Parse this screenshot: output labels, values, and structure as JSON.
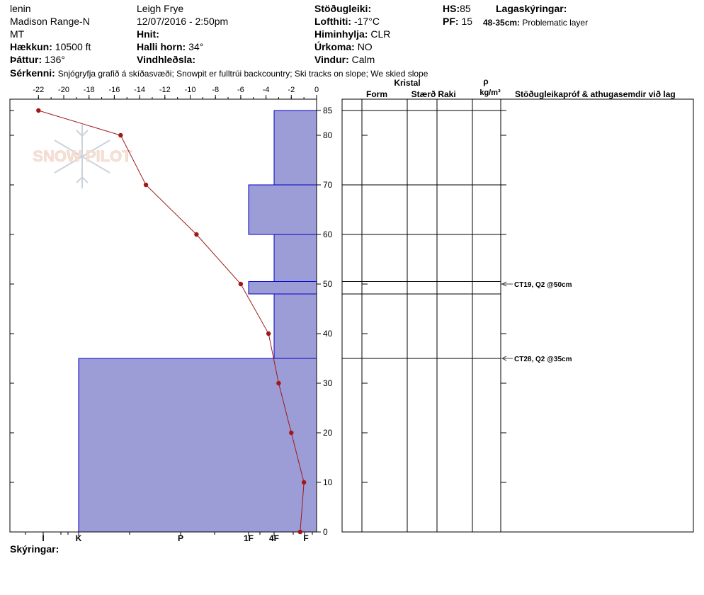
{
  "header": {
    "location_name": "lenin",
    "range": "Madison Range-N",
    "state": "MT",
    "observer": "Leigh Frye",
    "datetime": "12/07/2016 - 2:50pm",
    "elevation_label": "Hækkun:",
    "elevation_value": "10500 ft",
    "aspect_label": "Þáttur:",
    "aspect_value": "136°",
    "coords_label": "Hnit:",
    "slope_label": "Halli horn:",
    "slope_value": "34°",
    "wind_loading_label": "Vindhleðsla:",
    "stability_label": "Stöðugleiki:",
    "air_temp_label": "Lofthiti:",
    "air_temp_value": "-17°C",
    "sky_label": "Himinhylja:",
    "sky_value": "CLR",
    "precip_label": "Úrkoma:",
    "precip_value": "NO",
    "wind_label": "Vindur:",
    "wind_value": "Calm",
    "hs_label": "HS:",
    "hs_value": "85",
    "pf_label": "PF:",
    "pf_value": "15",
    "layers_label": "Lagaskýringar:",
    "layer_note_range": "48-35cm:",
    "layer_note_text": "Problematic layer",
    "features_label": "Sérkenni:",
    "features_text": "Snjógryfja grafið á skíðasvæði; Snowpit er fulltrúi backcountry; Ski tracks on slope; We skied slope",
    "notes_label": "Skýringar:"
  },
  "logo_text": "SNOW PILOT",
  "table": {
    "crystal_header": "Kristal",
    "form_header": "Form",
    "size_header": "Stærð",
    "moisture_header": "Raki",
    "density_symbol": "ρ",
    "density_unit": "kg/m³",
    "tests_header": "Stöðugleikapróf & athugasemdir við lag"
  },
  "tests": [
    {
      "depth": 50,
      "text": "CT19, Q2 @50cm"
    },
    {
      "depth": 35,
      "text": "CT28, Q2 @35cm"
    }
  ],
  "colors": {
    "hardness_fill": "#9c9cd6",
    "hardness_edge": "#0000cc",
    "temp_line": "#a01818"
  },
  "chart_data": {
    "type": "line",
    "temp_axis": {
      "ticks": [
        -22,
        -20,
        -18,
        -16,
        -14,
        -12,
        -10,
        -8,
        -6,
        -4,
        -2,
        0
      ],
      "range": [
        -22.5,
        0
      ]
    },
    "depth_axis": {
      "ticks": [
        0,
        10,
        20,
        30,
        40,
        50,
        60,
        70,
        80,
        85
      ],
      "range": [
        0,
        87
      ]
    },
    "hardness_labels": [
      "I",
      "K",
      "P",
      "1F",
      "4F",
      "F"
    ],
    "temperature_profile": [
      {
        "depth": 85,
        "temp": -22
      },
      {
        "depth": 80,
        "temp": -15.5
      },
      {
        "depth": 70,
        "temp": -13.5
      },
      {
        "depth": 60,
        "temp": -9.5
      },
      {
        "depth": 50,
        "temp": -6
      },
      {
        "depth": 40,
        "temp": -3.8
      },
      {
        "depth": 30,
        "temp": -3
      },
      {
        "depth": 20,
        "temp": -2
      },
      {
        "depth": 10,
        "temp": -1
      },
      {
        "depth": 0,
        "temp": -1.3
      }
    ],
    "hardness_layers": [
      {
        "top": 85,
        "bottom": 70,
        "hardness": "4F"
      },
      {
        "top": 70,
        "bottom": 60,
        "hardness": "1F"
      },
      {
        "top": 60,
        "bottom": 50.5,
        "hardness": "4F"
      },
      {
        "top": 50.5,
        "bottom": 48,
        "hardness": "1F"
      },
      {
        "top": 48,
        "bottom": 35,
        "hardness": "4F"
      },
      {
        "top": 35,
        "bottom": 0,
        "hardness": "K"
      }
    ],
    "layer_boundaries": [
      85,
      70,
      60,
      50.5,
      48,
      35
    ]
  }
}
